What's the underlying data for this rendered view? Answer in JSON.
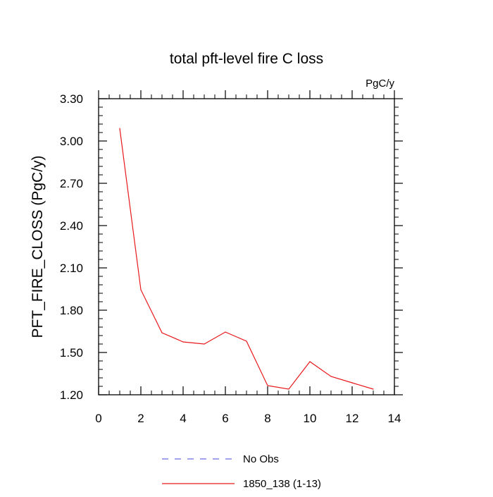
{
  "chart_data": {
    "type": "line",
    "title": "total pft-level fire C loss",
    "units_label": "PgC/y",
    "ylabel": "PFT_FIRE_CLOSS  (PgC/y)",
    "xlabel": "",
    "xlim": [
      0,
      14
    ],
    "ylim": [
      1.2,
      3.3
    ],
    "x_ticks": [
      0,
      2,
      4,
      6,
      8,
      10,
      12,
      14
    ],
    "x_tick_labels": [
      "0",
      "2",
      "4",
      "6",
      "8",
      "10",
      "12",
      "14"
    ],
    "y_ticks": [
      1.2,
      1.5,
      1.8,
      2.1,
      2.4,
      2.7,
      3.0,
      3.3
    ],
    "y_tick_labels": [
      "1.20",
      "1.50",
      "1.80",
      "2.10",
      "2.40",
      "2.70",
      "3.00",
      "3.30"
    ],
    "grid": false,
    "legend_position": "bottom-center",
    "series": [
      {
        "name": "No Obs",
        "color": "#6a6ae8",
        "dash": "dashed",
        "x": [],
        "y": []
      },
      {
        "name": "1850_138 (1-13)",
        "color": "#e8191c",
        "dash": "solid",
        "x": [
          1,
          2,
          3,
          4,
          5,
          6,
          7,
          8,
          9,
          10,
          11,
          12,
          13
        ],
        "y": [
          3.09,
          1.945,
          1.64,
          1.575,
          1.56,
          1.645,
          1.58,
          1.265,
          1.24,
          1.435,
          1.33,
          1.285,
          1.24
        ]
      }
    ]
  }
}
